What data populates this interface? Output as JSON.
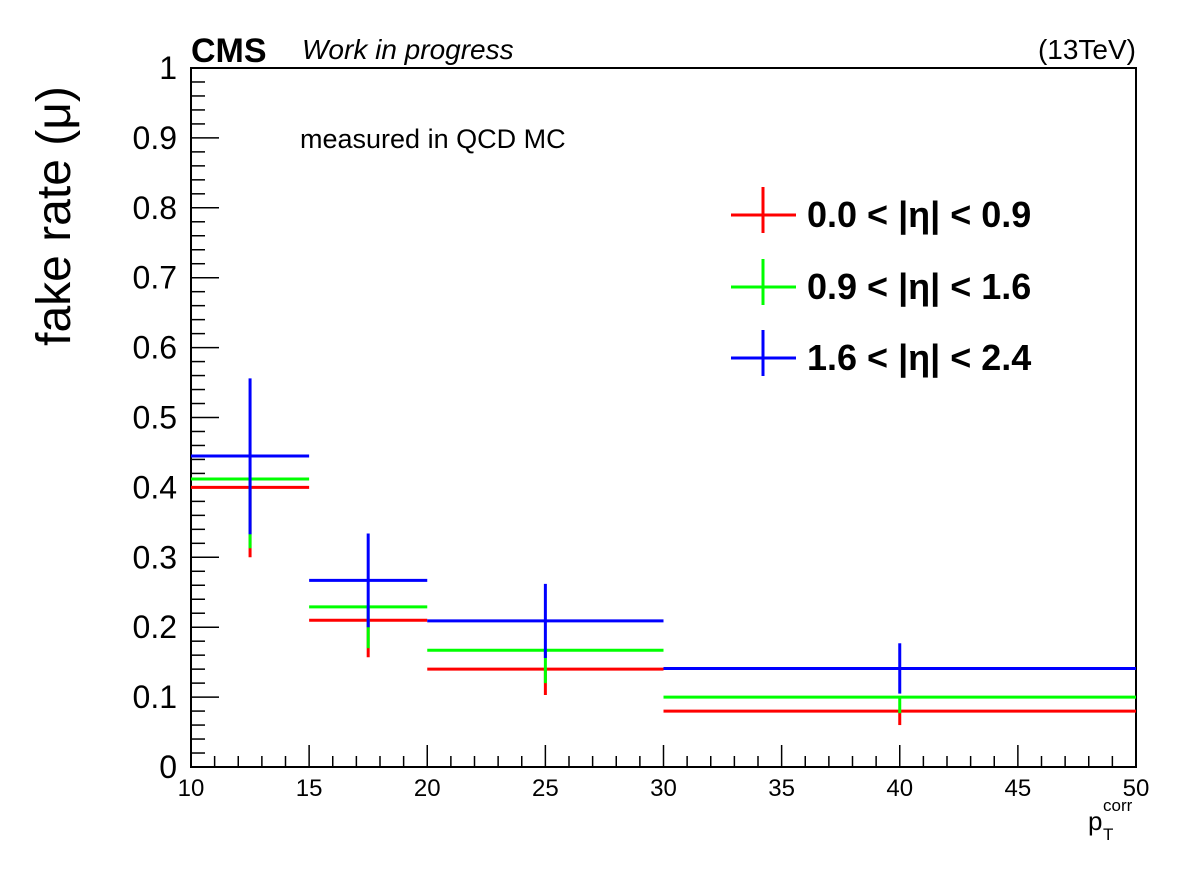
{
  "chart_data": {
    "type": "line",
    "experiment": "CMS",
    "status": "Work in progress",
    "energy": "(13TeV)",
    "annotation": "measured in QCD MC",
    "ylabel": "fake rate (μ)",
    "xlabel": {
      "main": "p",
      "sub": "T",
      "sup": "corr"
    },
    "xlim": [
      10,
      50
    ],
    "ylim": [
      0,
      1
    ],
    "x_ticks": [
      "10",
      "15",
      "20",
      "25",
      "30",
      "35",
      "40",
      "45",
      "50"
    ],
    "y_ticks": [
      "0",
      "0.1",
      "0.2",
      "0.3",
      "0.4",
      "0.5",
      "0.6",
      "0.7",
      "0.8",
      "0.9",
      "1"
    ],
    "bins": [
      [
        10,
        15
      ],
      [
        15,
        20
      ],
      [
        20,
        30
      ],
      [
        30,
        50
      ]
    ],
    "grid": false,
    "legend_position": "top-right",
    "series": [
      {
        "name": "0.0 < |η| < 0.9",
        "color": "#ff0000",
        "values": [
          0.4,
          0.21,
          0.14,
          0.08
        ],
        "err_up": [
          0.4,
          0.21,
          0.14,
          0.08
        ],
        "err_down": [
          0.3,
          0.157,
          0.103,
          0.06
        ]
      },
      {
        "name": "0.9 < |η| < 1.6",
        "color": "#00ff00",
        "values": [
          0.412,
          0.229,
          0.167,
          0.1
        ],
        "err_up": [
          0.412,
          0.229,
          0.167,
          0.1
        ],
        "err_down": [
          0.313,
          0.17,
          0.12,
          0.077
        ]
      },
      {
        "name": "1.6 < |η| < 2.4",
        "color": "#0000ff",
        "values": [
          0.445,
          0.267,
          0.209,
          0.141
        ],
        "err_up": [
          0.556,
          0.334,
          0.262,
          0.177
        ],
        "err_down": [
          0.333,
          0.2,
          0.156,
          0.105
        ]
      }
    ]
  }
}
